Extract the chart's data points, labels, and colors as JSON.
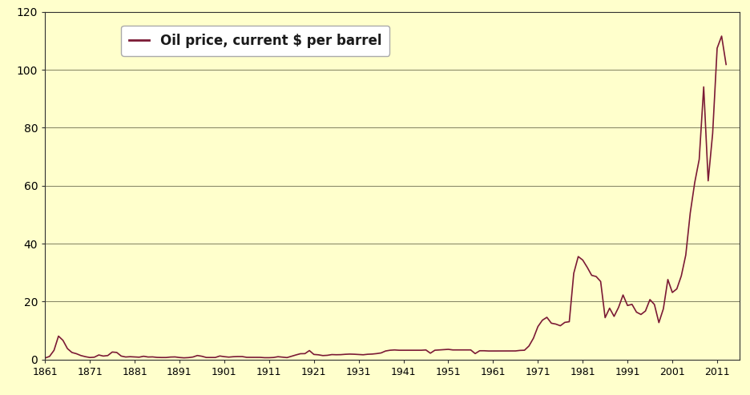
{
  "legend_label": "Oil price, current $ per barrel",
  "line_color": "#7B1A35",
  "background_color": "#FFFFCC",
  "grid_color": "#808060",
  "xlim": [
    1861,
    2016
  ],
  "ylim": [
    0,
    120
  ],
  "yticks": [
    0,
    20,
    40,
    60,
    80,
    100,
    120
  ],
  "xticks": [
    1861,
    1871,
    1881,
    1891,
    1901,
    1911,
    1921,
    1931,
    1941,
    1951,
    1961,
    1971,
    1981,
    1991,
    2001,
    2011
  ],
  "years": [
    1861,
    1862,
    1863,
    1864,
    1865,
    1866,
    1867,
    1868,
    1869,
    1870,
    1871,
    1872,
    1873,
    1874,
    1875,
    1876,
    1877,
    1878,
    1879,
    1880,
    1881,
    1882,
    1883,
    1884,
    1885,
    1886,
    1887,
    1888,
    1889,
    1890,
    1891,
    1892,
    1893,
    1894,
    1895,
    1896,
    1897,
    1898,
    1899,
    1900,
    1901,
    1902,
    1903,
    1904,
    1905,
    1906,
    1907,
    1908,
    1909,
    1910,
    1911,
    1912,
    1913,
    1914,
    1915,
    1916,
    1917,
    1918,
    1919,
    1920,
    1921,
    1922,
    1923,
    1924,
    1925,
    1926,
    1927,
    1928,
    1929,
    1930,
    1931,
    1932,
    1933,
    1934,
    1935,
    1936,
    1937,
    1938,
    1939,
    1940,
    1941,
    1942,
    1943,
    1944,
    1945,
    1946,
    1947,
    1948,
    1949,
    1950,
    1951,
    1952,
    1953,
    1954,
    1955,
    1956,
    1957,
    1958,
    1959,
    1960,
    1961,
    1962,
    1963,
    1964,
    1965,
    1966,
    1967,
    1968,
    1969,
    1970,
    1971,
    1972,
    1973,
    1974,
    1975,
    1976,
    1977,
    1978,
    1979,
    1980,
    1981,
    1982,
    1983,
    1984,
    1985,
    1986,
    1987,
    1988,
    1989,
    1990,
    1991,
    1992,
    1993,
    1994,
    1995,
    1996,
    1997,
    1998,
    1999,
    2000,
    2001,
    2002,
    2003,
    2004,
    2005,
    2006,
    2007,
    2008,
    2009,
    2010,
    2011,
    2012,
    2013
  ],
  "prices": [
    0.49,
    1.05,
    3.15,
    8.06,
    6.59,
    3.74,
    2.41,
    1.98,
    1.35,
    0.96,
    0.67,
    0.78,
    1.55,
    1.17,
    1.35,
    2.56,
    2.42,
    1.17,
    0.85,
    0.95,
    0.86,
    0.78,
    1.1,
    0.84,
    0.88,
    0.71,
    0.67,
    0.67,
    0.83,
    0.87,
    0.67,
    0.56,
    0.64,
    0.84,
    1.36,
    1.1,
    0.68,
    0.68,
    0.68,
    1.19,
    0.96,
    0.8,
    0.94,
    1.0,
    1.0,
    0.73,
    0.72,
    0.72,
    0.72,
    0.61,
    0.61,
    0.68,
    0.95,
    0.81,
    0.64,
    1.1,
    1.56,
    1.98,
    2.01,
    3.07,
    1.73,
    1.61,
    1.34,
    1.43,
    1.68,
    1.63,
    1.66,
    1.78,
    1.85,
    1.8,
    1.71,
    1.62,
    1.79,
    1.86,
    2.02,
    2.25,
    2.92,
    3.18,
    3.28,
    3.18,
    3.18,
    3.18,
    3.18,
    3.18,
    3.18,
    3.28,
    2.16,
    3.18,
    3.28,
    3.39,
    3.49,
    3.29,
    3.29,
    3.29,
    3.29,
    3.29,
    2.02,
    3.0,
    3.0,
    2.92,
    2.92,
    2.92,
    2.92,
    2.92,
    2.92,
    2.94,
    3.12,
    3.18,
    4.64,
    7.33,
    11.35,
    13.55,
    14.55,
    12.52,
    12.21,
    11.63,
    12.79,
    13.03,
    29.75,
    35.52,
    34.32,
    31.83,
    29.04,
    28.63,
    26.92,
    14.43,
    17.7,
    14.87,
    17.97,
    22.26,
    18.62,
    19.03,
    16.33,
    15.53,
    16.72,
    20.67,
    18.97,
    12.72,
    17.48,
    27.6,
    23.12,
    24.36,
    28.83,
    36.05,
    50.59,
    61.08,
    69.08,
    94.1,
    61.67,
    78.06,
    107.46,
    111.63,
    101.83
  ]
}
